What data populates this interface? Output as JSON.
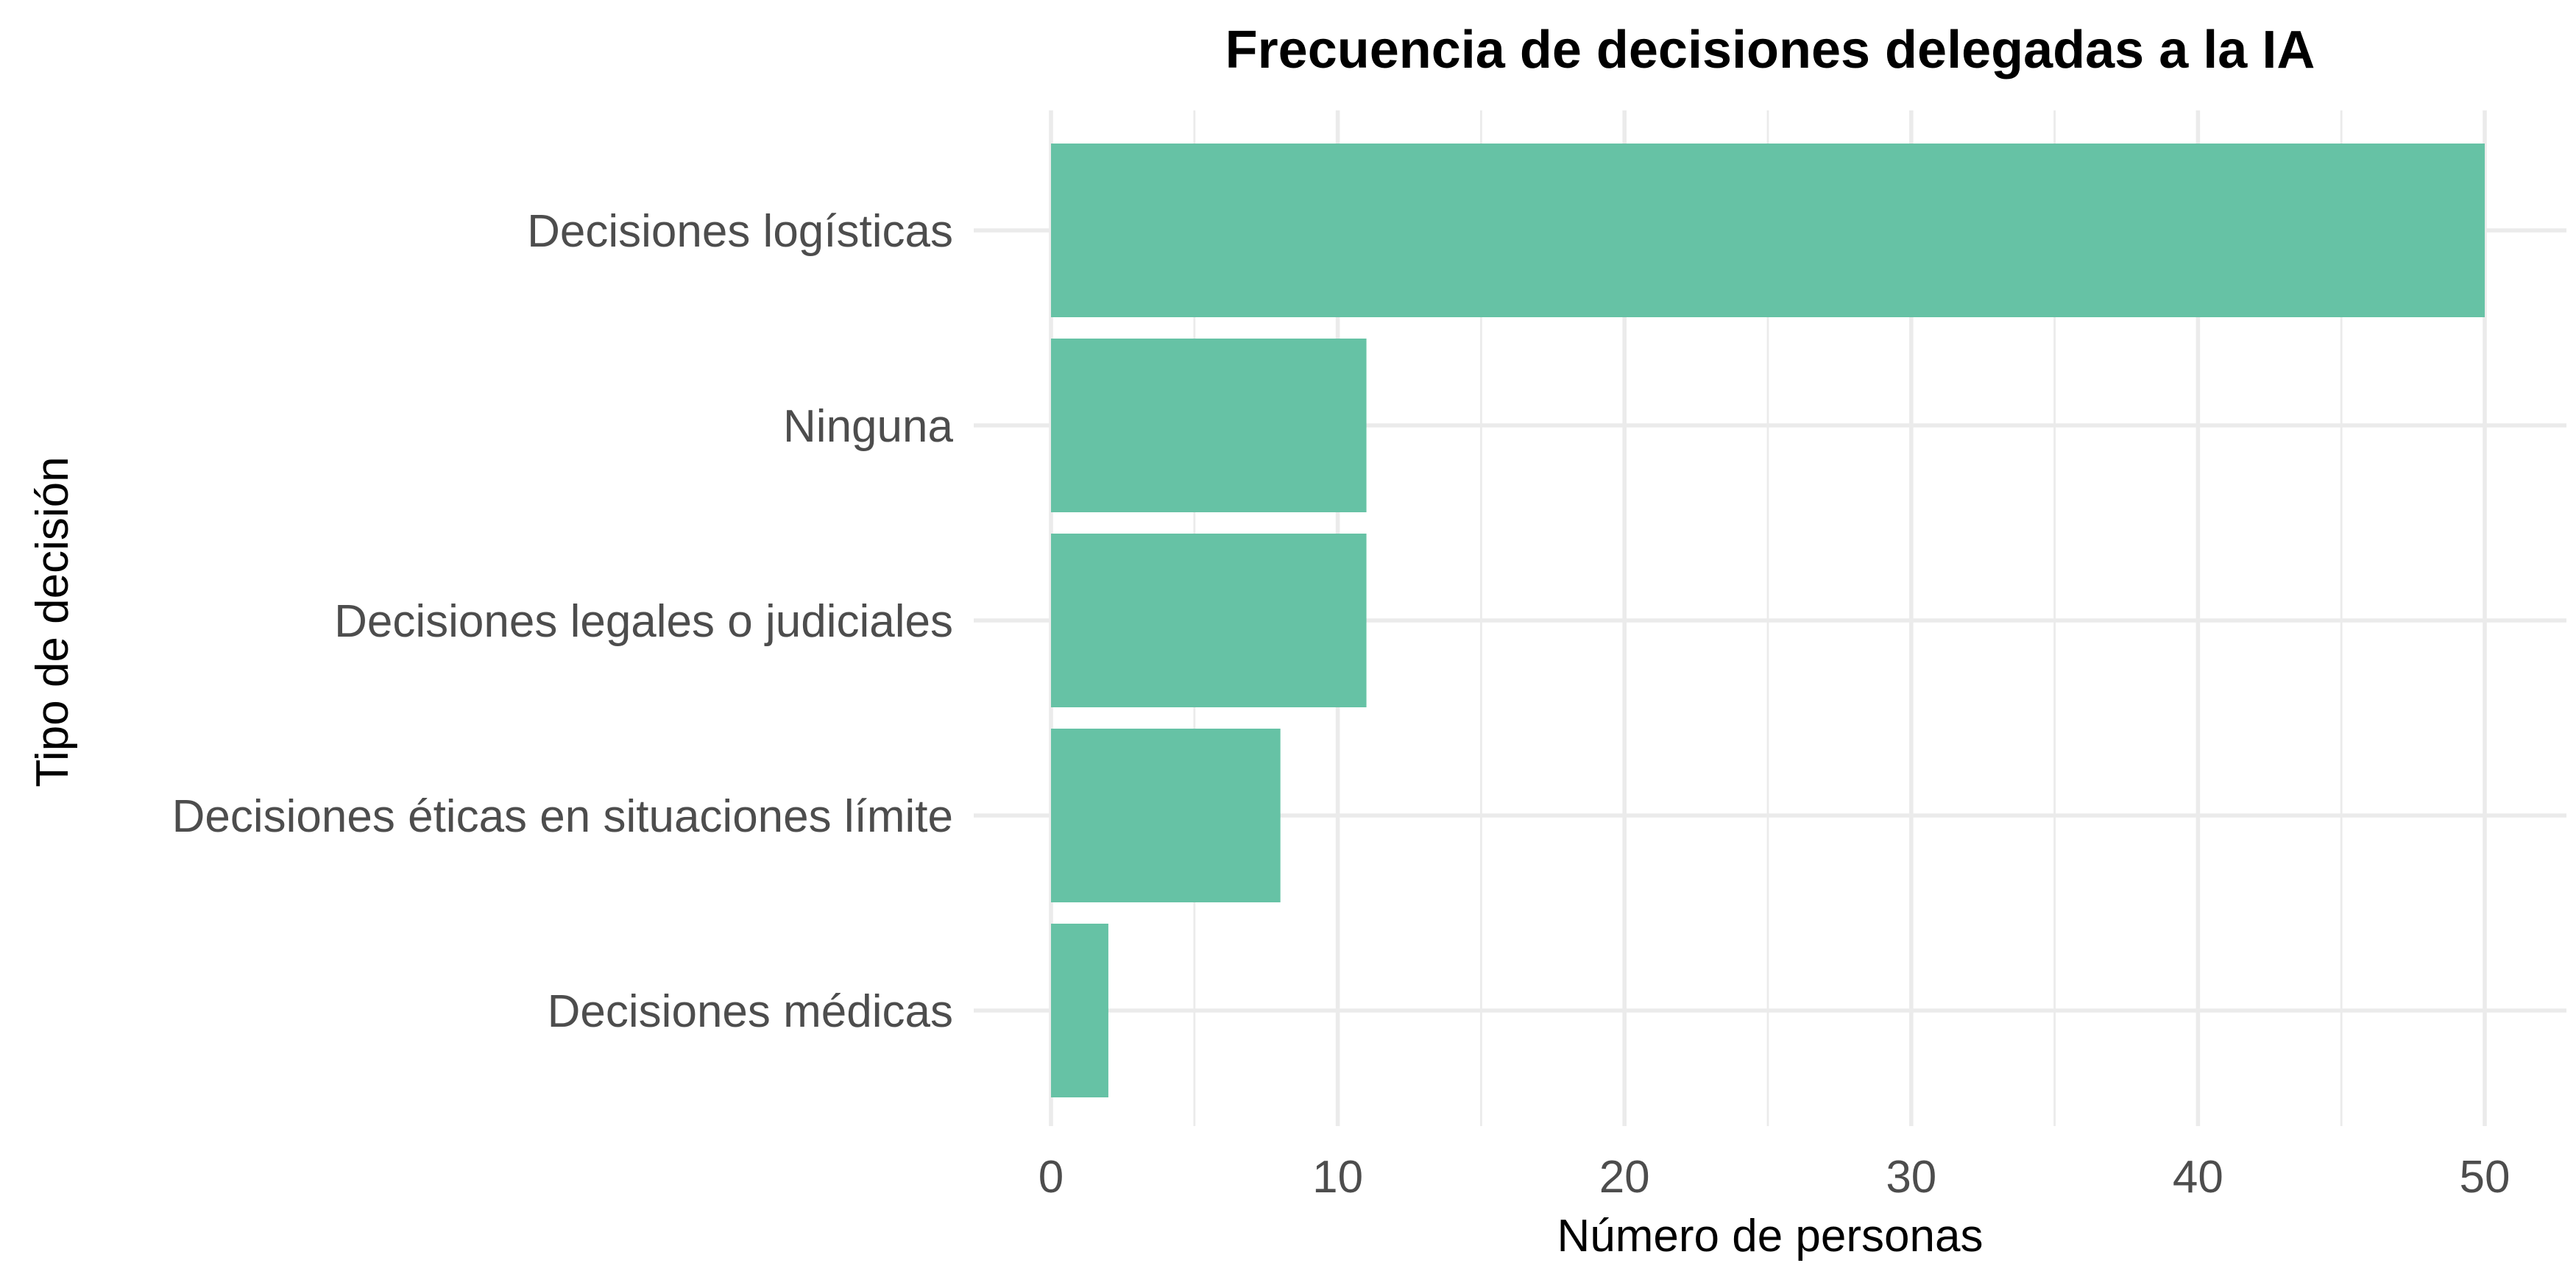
{
  "chart_data": {
    "type": "bar",
    "orientation": "horizontal",
    "title": "Frecuencia de decisiones delegadas a la IA",
    "xlabel": "Número de personas",
    "ylabel": "Tipo de decisión",
    "categories": [
      "Decisiones logísticas",
      "Ninguna",
      "Decisiones legales o judiciales",
      "Decisiones éticas en situaciones límite",
      "Decisiones médicas"
    ],
    "values": [
      50,
      11,
      11,
      8,
      2
    ],
    "xlim": [
      0,
      50
    ],
    "x_ticks": [
      0,
      10,
      20,
      30,
      40,
      50
    ],
    "grid": true,
    "bar_color": "#66c2a5"
  }
}
